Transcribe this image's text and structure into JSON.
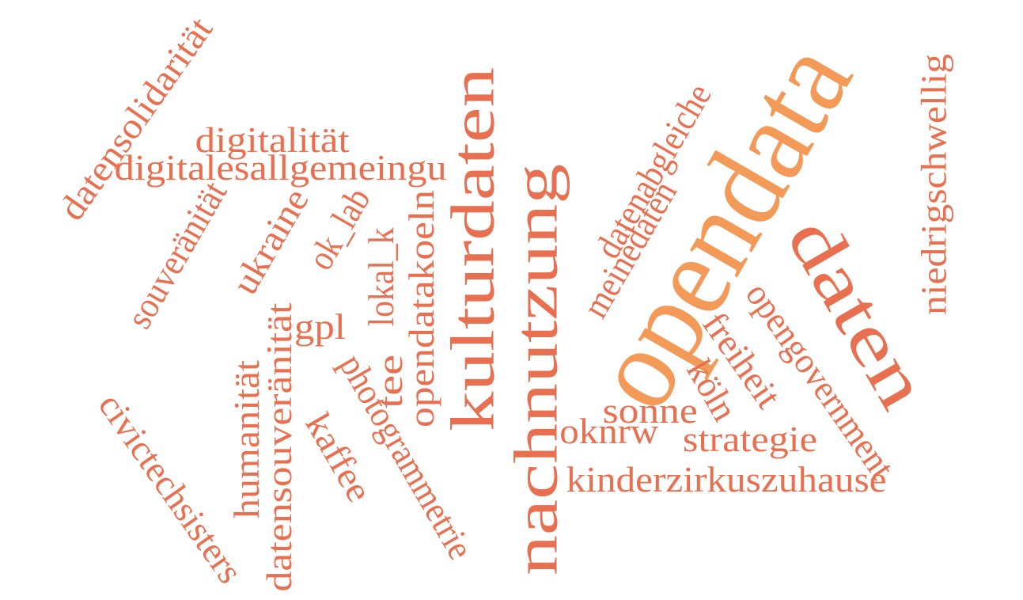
{
  "colors": {
    "primary": "#e86f4f",
    "accent": "#f39a58",
    "background": "#ffffff"
  },
  "words": [
    {
      "text": "opendata",
      "color": "#f39a58"
    },
    {
      "text": "daten",
      "color": "#e86f4f"
    },
    {
      "text": "kulturdaten",
      "color": "#e86f4f"
    },
    {
      "text": "nachnutzung",
      "color": "#e86f4f"
    },
    {
      "text": "datensolidarität",
      "color": "#e86f4f"
    },
    {
      "text": "digitalität",
      "color": "#e86f4f"
    },
    {
      "text": "digitalesallgemeingu",
      "color": "#e86f4f"
    },
    {
      "text": "souveränität",
      "color": "#e86f4f"
    },
    {
      "text": "ukraine",
      "color": "#e86f4f"
    },
    {
      "text": "ok_lab",
      "color": "#e86f4f"
    },
    {
      "text": "lokal_k",
      "color": "#e86f4f"
    },
    {
      "text": "opendatakoeln",
      "color": "#e86f4f"
    },
    {
      "text": "gpl",
      "color": "#e86f4f"
    },
    {
      "text": "tee",
      "color": "#e86f4f"
    },
    {
      "text": "humanität",
      "color": "#e86f4f"
    },
    {
      "text": "datensouveränität",
      "color": "#e86f4f"
    },
    {
      "text": "photogrammetrie",
      "color": "#e86f4f"
    },
    {
      "text": "kaffee",
      "color": "#e86f4f"
    },
    {
      "text": "civictechsisters",
      "color": "#e86f4f"
    },
    {
      "text": "datenabgleiche",
      "color": "#e86f4f"
    },
    {
      "text": "meinedaten",
      "color": "#e86f4f"
    },
    {
      "text": "opengovernment",
      "color": "#e86f4f"
    },
    {
      "text": "freiheit",
      "color": "#e86f4f"
    },
    {
      "text": "köln",
      "color": "#e86f4f"
    },
    {
      "text": "sonne",
      "color": "#e86f4f"
    },
    {
      "text": "oknrw",
      "color": "#e86f4f"
    },
    {
      "text": "strategie",
      "color": "#e86f4f"
    },
    {
      "text": "kinderzirkuszuhause",
      "color": "#e86f4f"
    },
    {
      "text": "niedrigschwellig",
      "color": "#e86f4f"
    }
  ]
}
